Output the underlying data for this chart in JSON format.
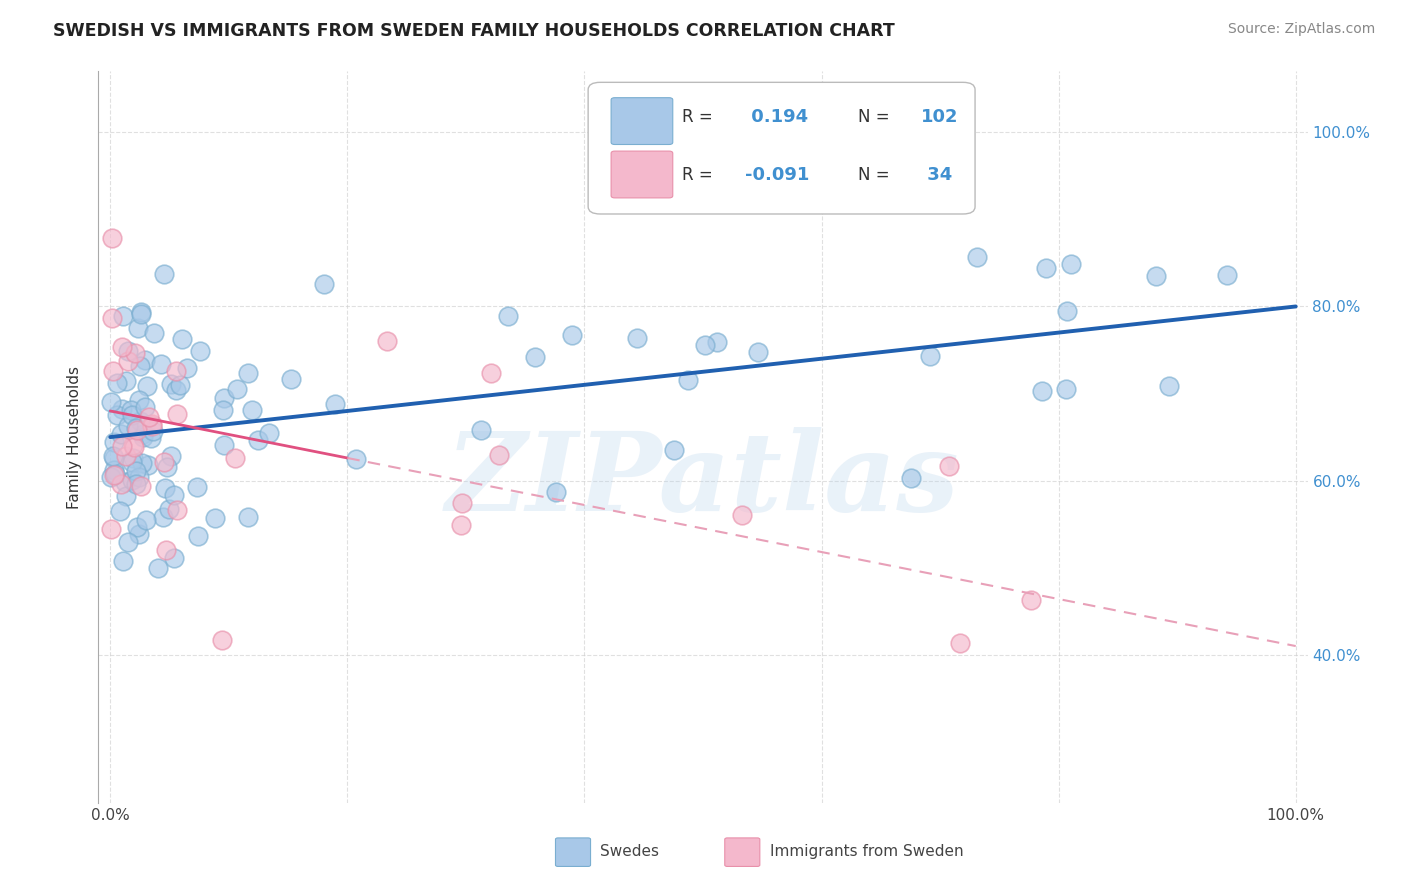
{
  "title": "SWEDISH VS IMMIGRANTS FROM SWEDEN FAMILY HOUSEHOLDS CORRELATION CHART",
  "source": "Source: ZipAtlas.com",
  "ylabel": "Family Households",
  "watermark": "ZIPatlas",
  "swedes_r": 0.194,
  "swedes_n": 102,
  "immigrants_r": -0.091,
  "immigrants_n": 34,
  "blue_marker_color": "#a8c8e8",
  "blue_marker_edge": "#7aaed0",
  "pink_marker_color": "#f4b8cc",
  "pink_marker_edge": "#e890aa",
  "blue_line_color": "#2060b0",
  "pink_solid_color": "#e05080",
  "pink_dash_color": "#e8a0b8",
  "background_color": "#ffffff",
  "grid_color": "#cccccc",
  "title_color": "#222222",
  "right_axis_color": "#4090d0",
  "legend_r_color": "#4090d0",
  "legend_n_color": "#4090d0",
  "blue_legend_fill": "#a8c8e8",
  "pink_legend_fill": "#f4b8cc",
  "bottom_legend_blue": "#a8c8e8",
  "bottom_legend_pink": "#f4b8cc"
}
